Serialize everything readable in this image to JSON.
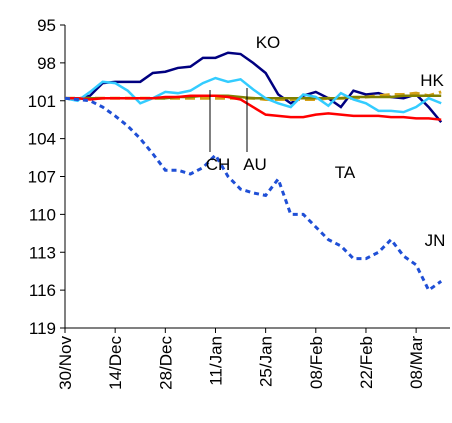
{
  "chart_data": {
    "type": "line",
    "categories": [
      "30/Nov",
      null,
      null,
      null,
      "14/Dec",
      null,
      null,
      null,
      "28/Dec",
      null,
      null,
      null,
      "11/Jan",
      null,
      null,
      null,
      "25/Jan",
      null,
      null,
      null,
      "08/Feb",
      null,
      null,
      null,
      "22/Feb",
      null,
      null,
      null,
      "08/Mar",
      null,
      null
    ],
    "ylim": [
      95,
      119
    ],
    "y_inverted": true,
    "yticks": [
      95,
      98,
      101,
      104,
      107,
      110,
      113,
      116,
      119
    ],
    "series": [
      {
        "name": "KO",
        "color": "#000080",
        "dash": "solid",
        "values": [
          100.8,
          100.9,
          100.6,
          99.6,
          99.5,
          99.5,
          99.5,
          98.8,
          98.7,
          98.4,
          98.3,
          97.6,
          97.6,
          97.2,
          97.3,
          98.0,
          98.8,
          100.5,
          101.2,
          100.6,
          100.3,
          100.8,
          101.5,
          100.2,
          100.5,
          100.4,
          100.7,
          100.8,
          100.5,
          101.5,
          102.7
        ]
      },
      {
        "name": "HK",
        "color": "#d4a017",
        "dash": "dashed",
        "values": [
          100.8,
          100.8,
          100.8,
          100.8,
          100.8,
          100.8,
          100.8,
          100.8,
          100.8,
          100.8,
          100.8,
          100.8,
          100.8,
          100.8,
          100.8,
          100.8,
          100.9,
          100.9,
          100.9,
          100.9,
          100.9,
          100.8,
          100.8,
          100.8,
          100.7,
          100.6,
          100.5,
          100.5,
          100.4,
          100.6,
          100.3
        ]
      },
      {
        "name": "CH",
        "color": "#808000",
        "dash": "solid",
        "values": [
          100.8,
          100.8,
          100.8,
          100.8,
          100.8,
          100.8,
          100.8,
          100.8,
          100.8,
          100.7,
          100.7,
          100.6,
          100.6,
          100.6,
          100.7,
          100.8,
          100.8,
          100.8,
          100.8,
          100.8,
          100.8,
          100.8,
          100.8,
          100.7,
          100.7,
          100.7,
          100.7,
          100.6,
          100.6,
          100.6,
          100.6
        ]
      },
      {
        "name": "AU",
        "color": "#33ccff",
        "dash": "solid",
        "values": [
          100.8,
          101.0,
          100.3,
          99.5,
          99.6,
          100.2,
          101.2,
          100.8,
          100.3,
          100.4,
          100.2,
          99.6,
          99.2,
          99.5,
          99.3,
          100.1,
          100.8,
          101.2,
          101.5,
          100.5,
          100.7,
          101.4,
          100.4,
          100.9,
          101.2,
          101.8,
          101.8,
          101.9,
          101.5,
          100.8,
          101.2
        ]
      },
      {
        "name": "TA",
        "color": "#ff0000",
        "dash": "solid",
        "values": [
          100.8,
          100.8,
          100.9,
          100.8,
          100.8,
          100.8,
          100.8,
          100.8,
          100.7,
          100.7,
          100.6,
          100.6,
          100.6,
          100.7,
          100.9,
          101.5,
          102.1,
          102.2,
          102.3,
          102.3,
          102.1,
          102.0,
          102.1,
          102.2,
          102.2,
          102.2,
          102.3,
          102.3,
          102.4,
          102.4,
          102.5
        ]
      },
      {
        "name": "JN",
        "color": "#1f4fd6",
        "dash": "dotted",
        "values": [
          100.8,
          100.9,
          101.0,
          101.5,
          102.2,
          103.0,
          104.0,
          105.2,
          106.5,
          106.5,
          106.8,
          106.3,
          105.3,
          107.0,
          108.0,
          108.3,
          108.5,
          107.2,
          110.0,
          110.0,
          111.0,
          112.0,
          112.5,
          113.5,
          113.5,
          113.0,
          112.0,
          113.3,
          114.0,
          116.0,
          115.3
        ]
      }
    ]
  }
}
